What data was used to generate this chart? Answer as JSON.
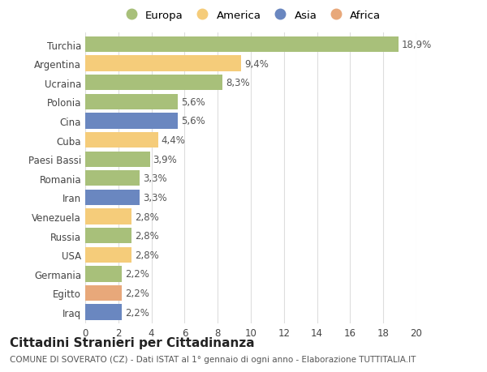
{
  "countries": [
    "Turchia",
    "Argentina",
    "Ucraina",
    "Polonia",
    "Cina",
    "Cuba",
    "Paesi Bassi",
    "Romania",
    "Iran",
    "Venezuela",
    "Russia",
    "USA",
    "Germania",
    "Egitto",
    "Iraq"
  ],
  "values": [
    18.9,
    9.4,
    8.3,
    5.6,
    5.6,
    4.4,
    3.9,
    3.3,
    3.3,
    2.8,
    2.8,
    2.8,
    2.2,
    2.2,
    2.2
  ],
  "labels": [
    "18,9%",
    "9,4%",
    "8,3%",
    "5,6%",
    "5,6%",
    "4,4%",
    "3,9%",
    "3,3%",
    "3,3%",
    "2,8%",
    "2,8%",
    "2,8%",
    "2,2%",
    "2,2%",
    "2,2%"
  ],
  "continents": [
    "Europa",
    "America",
    "Europa",
    "Europa",
    "Asia",
    "America",
    "Europa",
    "Europa",
    "Asia",
    "America",
    "Europa",
    "America",
    "Europa",
    "Africa",
    "Asia"
  ],
  "continent_colors": {
    "Europa": "#a8c07a",
    "America": "#f5cc7a",
    "Asia": "#6a87c0",
    "Africa": "#e8a87a"
  },
  "legend_order": [
    "Europa",
    "America",
    "Asia",
    "Africa"
  ],
  "xlim": [
    0,
    20
  ],
  "xticks": [
    0,
    2,
    4,
    6,
    8,
    10,
    12,
    14,
    16,
    18,
    20
  ],
  "title": "Cittadini Stranieri per Cittadinanza",
  "subtitle": "COMUNE DI SOVERATO (CZ) - Dati ISTAT al 1° gennaio di ogni anno - Elaborazione TUTTITALIA.IT",
  "background_color": "#ffffff",
  "grid_color": "#dddddd",
  "bar_height": 0.82,
  "label_fontsize": 8.5,
  "tick_fontsize": 8.5,
  "title_fontsize": 11,
  "subtitle_fontsize": 7.5
}
